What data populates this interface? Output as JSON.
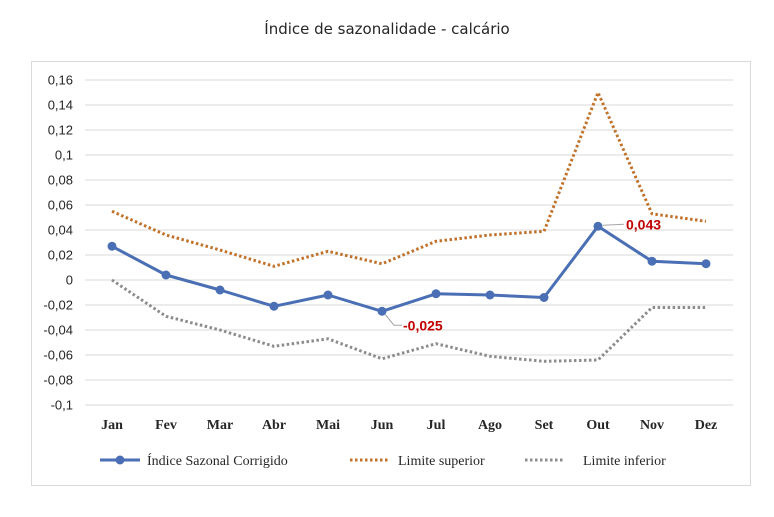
{
  "chart_data": {
    "type": "line",
    "title": "Índice de sazonalidade - calcário",
    "categories": [
      "Jan",
      "Fev",
      "Mar",
      "Abr",
      "Mai",
      "Jun",
      "Jul",
      "Ago",
      "Set",
      "Out",
      "Nov",
      "Dez"
    ],
    "y_tick_labels": [
      "0,16",
      "0,14",
      "0,12",
      "0,1",
      "0,08",
      "0,06",
      "0,04",
      "0,02",
      "0",
      "-0,02",
      "-0,04",
      "-0,06",
      "-0,08",
      "-0,1"
    ],
    "ylim": [
      -0.1,
      0.16
    ],
    "grid": true,
    "legend_position": "bottom",
    "series": [
      {
        "name": "Índice Sazonal Corrigido",
        "style": "solid-markers",
        "color": "#4a6fb5",
        "values": [
          0.027,
          0.004,
          -0.008,
          -0.021,
          -0.012,
          -0.025,
          -0.011,
          -0.012,
          -0.014,
          0.043,
          0.015,
          0.013
        ]
      },
      {
        "name": "Limite superior",
        "style": "dotted",
        "color": "#c0722b",
        "values": [
          0.055,
          0.036,
          0.024,
          0.011,
          0.023,
          0.013,
          0.031,
          0.036,
          0.039,
          0.15,
          0.053,
          0.047
        ]
      },
      {
        "name": "Limite inferior",
        "style": "dotted",
        "color": "#8c8c8c",
        "values": [
          0.0,
          -0.029,
          -0.04,
          -0.053,
          -0.047,
          -0.063,
          -0.051,
          -0.061,
          -0.065,
          -0.064,
          -0.022,
          -0.022
        ]
      }
    ],
    "data_labels": [
      {
        "series": 0,
        "index": 5,
        "text": "-0,025"
      },
      {
        "series": 0,
        "index": 9,
        "text": "0,043"
      }
    ]
  }
}
